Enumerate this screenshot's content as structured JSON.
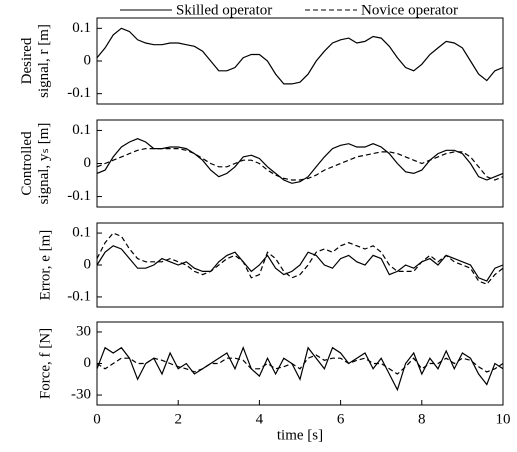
{
  "chart_data": [
    {
      "type": "line",
      "ylabel": [
        "Desired",
        "signal, r [m]"
      ],
      "xlim": [
        0,
        10
      ],
      "ylim": [
        -0.1,
        0.1
      ],
      "yticks": [
        0.1,
        0,
        -0.1
      ],
      "x": [
        0,
        0.2,
        0.4,
        0.6,
        0.8,
        1,
        1.2,
        1.4,
        1.6,
        1.8,
        2,
        2.2,
        2.4,
        2.6,
        2.8,
        3,
        3.2,
        3.4,
        3.6,
        3.8,
        4,
        4.2,
        4.4,
        4.6,
        4.8,
        5,
        5.2,
        5.4,
        5.6,
        5.8,
        6,
        6.2,
        6.4,
        6.6,
        6.8,
        7,
        7.2,
        7.4,
        7.6,
        7.8,
        8,
        8.2,
        8.4,
        8.6,
        8.8,
        9,
        9.2,
        9.4,
        9.6,
        9.8,
        10
      ],
      "series": [
        {
          "color": "#000000",
          "style": "solid",
          "values": [
            0.01,
            0.04,
            0.08,
            0.1,
            0.09,
            0.065,
            0.055,
            0.05,
            0.05,
            0.055,
            0.055,
            0.05,
            0.045,
            0.03,
            0,
            -0.03,
            -0.03,
            -0.02,
            0.01,
            0.02,
            0.02,
            0,
            -0.04,
            -0.07,
            -0.07,
            -0.065,
            -0.04,
            0,
            0.03,
            0.055,
            0.065,
            0.07,
            0.055,
            0.06,
            0.075,
            0.07,
            0.045,
            0.01,
            -0.02,
            -0.03,
            -0.01,
            0.02,
            0.04,
            0.06,
            0.055,
            0.04,
            0,
            -0.04,
            -0.06,
            -0.03,
            -0.02
          ]
        }
      ]
    },
    {
      "type": "line",
      "ylabel": [
        "Controlled",
        "signal, yₛ [m]"
      ],
      "xlim": [
        0,
        10
      ],
      "ylim": [
        -0.1,
        0.1
      ],
      "yticks": [
        0.1,
        0,
        -0.1
      ],
      "x": [
        0,
        0.2,
        0.4,
        0.6,
        0.8,
        1,
        1.2,
        1.4,
        1.6,
        1.8,
        2,
        2.2,
        2.4,
        2.6,
        2.8,
        3,
        3.2,
        3.4,
        3.6,
        3.8,
        4,
        4.2,
        4.4,
        4.6,
        4.8,
        5,
        5.2,
        5.4,
        5.6,
        5.8,
        6,
        6.2,
        6.4,
        6.6,
        6.8,
        7,
        7.2,
        7.4,
        7.6,
        7.8,
        8,
        8.2,
        8.4,
        8.6,
        8.8,
        9,
        9.2,
        9.4,
        9.6,
        9.8,
        10
      ],
      "series": [
        {
          "name": "Skilled operator",
          "color": "#000000",
          "style": "solid",
          "values": [
            -0.03,
            -0.02,
            0.02,
            0.05,
            0.065,
            0.075,
            0.065,
            0.045,
            0.045,
            0.05,
            0.05,
            0.045,
            0.03,
            0.01,
            -0.02,
            -0.04,
            -0.03,
            -0.01,
            0.02,
            0.025,
            0.015,
            -0.01,
            -0.03,
            -0.05,
            -0.06,
            -0.055,
            -0.04,
            -0.01,
            0.02,
            0.045,
            0.055,
            0.06,
            0.05,
            0.05,
            0.06,
            0.05,
            0.03,
            0,
            -0.025,
            -0.03,
            -0.02,
            0.01,
            0.03,
            0.04,
            0.04,
            0.03,
            0,
            -0.04,
            -0.05,
            -0.04,
            -0.03
          ]
        },
        {
          "name": "Novice operator",
          "color": "#000000",
          "style": "dash",
          "values": [
            -0.01,
            0,
            0.01,
            0.02,
            0.03,
            0.04,
            0.045,
            0.045,
            0.045,
            0.045,
            0.045,
            0.04,
            0.03,
            0.015,
            0,
            -0.01,
            -0.01,
            0,
            0.01,
            0.01,
            0,
            -0.02,
            -0.035,
            -0.045,
            -0.05,
            -0.05,
            -0.045,
            -0.035,
            -0.02,
            -0.01,
            0,
            0.01,
            0.02,
            0.025,
            0.03,
            0.035,
            0.035,
            0.03,
            0.02,
            0.01,
            0,
            0.01,
            0.02,
            0.03,
            0.035,
            0.035,
            0.02,
            -0.01,
            -0.04,
            -0.05,
            -0.04
          ]
        }
      ]
    },
    {
      "type": "line",
      "ylabel": [
        "Error, e [m]"
      ],
      "xlim": [
        0,
        10
      ],
      "ylim": [
        -0.1,
        0.1
      ],
      "yticks": [
        0.1,
        0,
        -0.1
      ],
      "x": [
        0,
        0.2,
        0.4,
        0.6,
        0.8,
        1,
        1.2,
        1.4,
        1.6,
        1.8,
        2,
        2.2,
        2.4,
        2.6,
        2.8,
        3,
        3.2,
        3.4,
        3.6,
        3.8,
        4,
        4.2,
        4.4,
        4.6,
        4.8,
        5,
        5.2,
        5.4,
        5.6,
        5.8,
        6,
        6.2,
        6.4,
        6.6,
        6.8,
        7,
        7.2,
        7.4,
        7.6,
        7.8,
        8,
        8.2,
        8.4,
        8.6,
        8.8,
        9,
        9.2,
        9.4,
        9.6,
        9.8,
        10
      ],
      "series": [
        {
          "color": "#000000",
          "style": "solid",
          "values": [
            0,
            0.04,
            0.06,
            0.05,
            0.02,
            -0.01,
            -0.01,
            0,
            0.02,
            0.01,
            0,
            0.01,
            -0.01,
            -0.02,
            -0.02,
            0.01,
            0.03,
            0.04,
            0.01,
            -0.02,
            0,
            0.03,
            -0.01,
            -0.03,
            -0.02,
            0,
            0.04,
            0.03,
            0,
            -0.01,
            0.02,
            0.03,
            0.01,
            0,
            0.03,
            0.02,
            -0.03,
            -0.02,
            0,
            -0.01,
            0.01,
            0.02,
            0,
            0.03,
            0.02,
            0.01,
            0,
            -0.04,
            -0.05,
            -0.01,
            0
          ]
        },
        {
          "color": "#000000",
          "style": "dash",
          "values": [
            0.02,
            0.07,
            0.1,
            0.09,
            0.05,
            0.02,
            0.01,
            0.01,
            0.01,
            0.02,
            0.01,
            0,
            -0.02,
            -0.03,
            -0.02,
            0,
            0.02,
            0.03,
            0.01,
            -0.04,
            -0.03,
            0.04,
            0.02,
            -0.02,
            -0.04,
            -0.03,
            0,
            0.04,
            0.05,
            0.04,
            0.06,
            0.07,
            0.06,
            0.05,
            0.06,
            0.04,
            0,
            -0.02,
            -0.02,
            -0.02,
            0.01,
            0.03,
            0.01,
            0.03,
            0.01,
            0,
            -0.01,
            -0.05,
            -0.06,
            -0.03,
            -0.01
          ]
        }
      ]
    },
    {
      "type": "line",
      "ylabel": [
        "Force, f [N]"
      ],
      "xlabel": "time [s]",
      "xlim": [
        0,
        10
      ],
      "xticks": [
        0,
        2,
        4,
        6,
        8,
        10
      ],
      "ylim": [
        -30,
        30
      ],
      "yticks": [
        30,
        0,
        -30
      ],
      "x": [
        0,
        0.2,
        0.4,
        0.6,
        0.8,
        1,
        1.2,
        1.4,
        1.6,
        1.8,
        2,
        2.2,
        2.4,
        2.6,
        2.8,
        3,
        3.2,
        3.4,
        3.6,
        3.8,
        4,
        4.2,
        4.4,
        4.6,
        4.8,
        5,
        5.2,
        5.4,
        5.6,
        5.8,
        6,
        6.2,
        6.4,
        6.6,
        6.8,
        7,
        7.2,
        7.4,
        7.6,
        7.8,
        8,
        8.2,
        8.4,
        8.6,
        8.8,
        9,
        9.2,
        9.4,
        9.6,
        9.8,
        10
      ],
      "series": [
        {
          "color": "#000000",
          "style": "solid",
          "values": [
            -5,
            15,
            10,
            15,
            5,
            -15,
            0,
            5,
            -10,
            10,
            -5,
            0,
            -10,
            -5,
            0,
            5,
            10,
            -5,
            15,
            -5,
            -12,
            5,
            -10,
            5,
            0,
            -15,
            15,
            5,
            -5,
            15,
            10,
            0,
            5,
            10,
            -5,
            5,
            -10,
            -25,
            0,
            10,
            -10,
            5,
            -5,
            12,
            -5,
            10,
            5,
            -10,
            -20,
            0,
            -5
          ]
        },
        {
          "color": "#000000",
          "style": "dash",
          "values": [
            0,
            -5,
            0,
            5,
            5,
            0,
            0,
            5,
            3,
            0,
            -3,
            -5,
            -8,
            -5,
            0,
            0,
            5,
            5,
            3,
            -5,
            -5,
            0,
            -5,
            -3,
            0,
            -5,
            5,
            8,
            3,
            5,
            5,
            0,
            3,
            5,
            0,
            0,
            -5,
            -10,
            -3,
            5,
            -5,
            0,
            0,
            5,
            0,
            5,
            3,
            -3,
            -8,
            -5,
            0
          ]
        }
      ]
    }
  ]
}
